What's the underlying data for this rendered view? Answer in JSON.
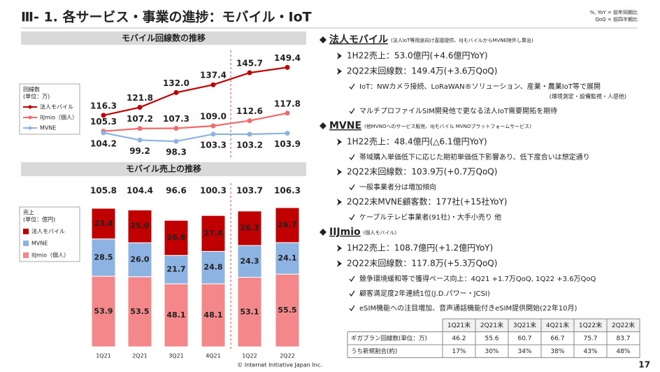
{
  "header": {
    "title": "Ⅲ- 1.  各サービス・事業の進捗：モバイル・IoT",
    "notes": [
      "%, YoY = 前年同期比",
      "QoQ = 前四半期比"
    ]
  },
  "chart_data": [
    {
      "type": "line",
      "title": "モバイル回線数の推移",
      "legend_title": "回線数",
      "legend_unit": "(単位：万)",
      "ylim": [
        95,
        152
      ],
      "series": [
        {
          "name": "法人モバイル",
          "color": "#c00000",
          "values": [
            116.3,
            121.8,
            132.0,
            137.4,
            145.7,
            149.4
          ],
          "value_labels": [
            "116.3",
            "121.8",
            "132.0",
            "137.4",
            "145.7",
            "149.4"
          ]
        },
        {
          "name": "IIJmio（個人）",
          "color": "#f26b6b",
          "values": [
            105.3,
            107.2,
            107.3,
            109.0,
            112.6,
            117.8
          ],
          "value_labels": [
            "105.3",
            "107.2",
            "107.3",
            "109.0",
            "112.6",
            "117.8"
          ]
        },
        {
          "name": "MVNE",
          "color": "#8db3e2",
          "values": [
            104.2,
            99.2,
            98.3,
            103.3,
            103.2,
            103.9
          ],
          "value_labels": [
            "104.2",
            "99.2",
            "98.3",
            "103.3",
            "103.2",
            "103.9"
          ]
        }
      ]
    },
    {
      "type": "stacked_bar",
      "title": "モバイル売上の推移",
      "legend_title": "売上",
      "legend_unit": "(単位：億円)",
      "categories": [
        "1Q21",
        "2Q21",
        "3Q21",
        "4Q21",
        "1Q22",
        "2Q22"
      ],
      "ylim": [
        0,
        110
      ],
      "totals": [
        105.8,
        104.4,
        96.6,
        100.3,
        103.7,
        106.3
      ],
      "series": [
        {
          "name": "IIJmio（個人）",
          "color": "#f4878a",
          "values": [
            53.9,
            53.5,
            48.1,
            48.1,
            53.1,
            55.5
          ],
          "value_labels": [
            "53.9",
            "53.5",
            "48.1",
            "48.1",
            "53.1",
            "55.5"
          ]
        },
        {
          "name": "MVNE",
          "color": "#8db3e2",
          "values": [
            28.5,
            26.0,
            21.7,
            24.8,
            24.3,
            24.1
          ],
          "value_labels": [
            "28.5",
            "26.0",
            "21.7",
            "24.8",
            "24.3",
            "24.1"
          ]
        },
        {
          "name": "法人モバイル",
          "color": "#c00000",
          "values": [
            23.4,
            25.0,
            26.8,
            27.4,
            26.3,
            26.7
          ],
          "value_labels": [
            "23.4",
            "25.0",
            "26.8",
            "27.4",
            "26.3",
            "26.7"
          ]
        }
      ]
    }
  ],
  "sections": [
    {
      "heading": "法人モバイル",
      "note": "(法人IoT等用途向け直接提供、IIJモバイルからMVNE除外し算出)",
      "items": [
        {
          "level": 1,
          "text": "1H22売上：53.0億円(+4.6億円YoY)"
        },
        {
          "level": 1,
          "text": "2Q22末回線数：149.4万(+3.6万QoQ)"
        },
        {
          "level": 2,
          "text": "IoT：NWカメラ接続、LoRaWAN®ソリューション、産業・農業IoT等で展開",
          "sub": "(環境測定・設備監視・人感他)"
        },
        {
          "level": 2,
          "text": "マルチプロファイルSIM開発他で更なる法人IoT需要開拓を期待"
        }
      ]
    },
    {
      "heading": "MVNE",
      "note": "(他MVNOへのサービス販売、IIJモバイル MVNOプラットフォームサービス)",
      "items": [
        {
          "level": 1,
          "text": "1H22売上：48.4億円(△6.1億円YoY)"
        },
        {
          "level": 2,
          "text": "帯域購入単価低下に応じた期初単価低下影響あり、低下度合いは想定通り"
        },
        {
          "level": 1,
          "text": "2Q22末回線数：103.9万(+0.7万QoQ)"
        },
        {
          "level": 2,
          "text": "一般事業者分は増加傾向"
        },
        {
          "level": 1,
          "text": "2Q22末MVNE顧客数：177社(+15社YoY)"
        },
        {
          "level": 2,
          "text": "ケーブルテレビ事業者(91社)・大手小売り 他"
        }
      ]
    },
    {
      "heading": "IIJmio",
      "note": "(個人モバイル)",
      "items": [
        {
          "level": 1,
          "text": "1H22売上：108.7億円(+1.2億円YoY)"
        },
        {
          "level": 1,
          "text": "2Q22末回線数：117.8万(+5.3万QoQ)"
        },
        {
          "level": 2,
          "text": "競争環境緩和等で獲得ペース向上：4Q21 +1.7万QoQ, 1Q22 +3.6万QoQ"
        },
        {
          "level": 2,
          "text": "顧客満足度2年連続1位(J.D.パワー・JCSI)"
        },
        {
          "level": 2,
          "text": "eSIM機能への注目増加、音声通話機能付きeSIM提供開始(22年10月)"
        }
      ]
    }
  ],
  "table": {
    "columns": [
      "1Q21末",
      "2Q21末",
      "3Q21末",
      "4Q21末",
      "1Q22末",
      "2Q22末"
    ],
    "rows": [
      {
        "label": "ギガプラン回線数(単位：万)",
        "cells": [
          46.2,
          55.6,
          60.7,
          66.7,
          75.7,
          83.7
        ]
      },
      {
        "label": "うち新規割合(約)",
        "cells": [
          "17%",
          "30%",
          "34%",
          "38%",
          "43%",
          "48%"
        ]
      }
    ]
  },
  "footer": {
    "copyright": "© Internet Initiative Japan Inc.",
    "page": "17"
  }
}
